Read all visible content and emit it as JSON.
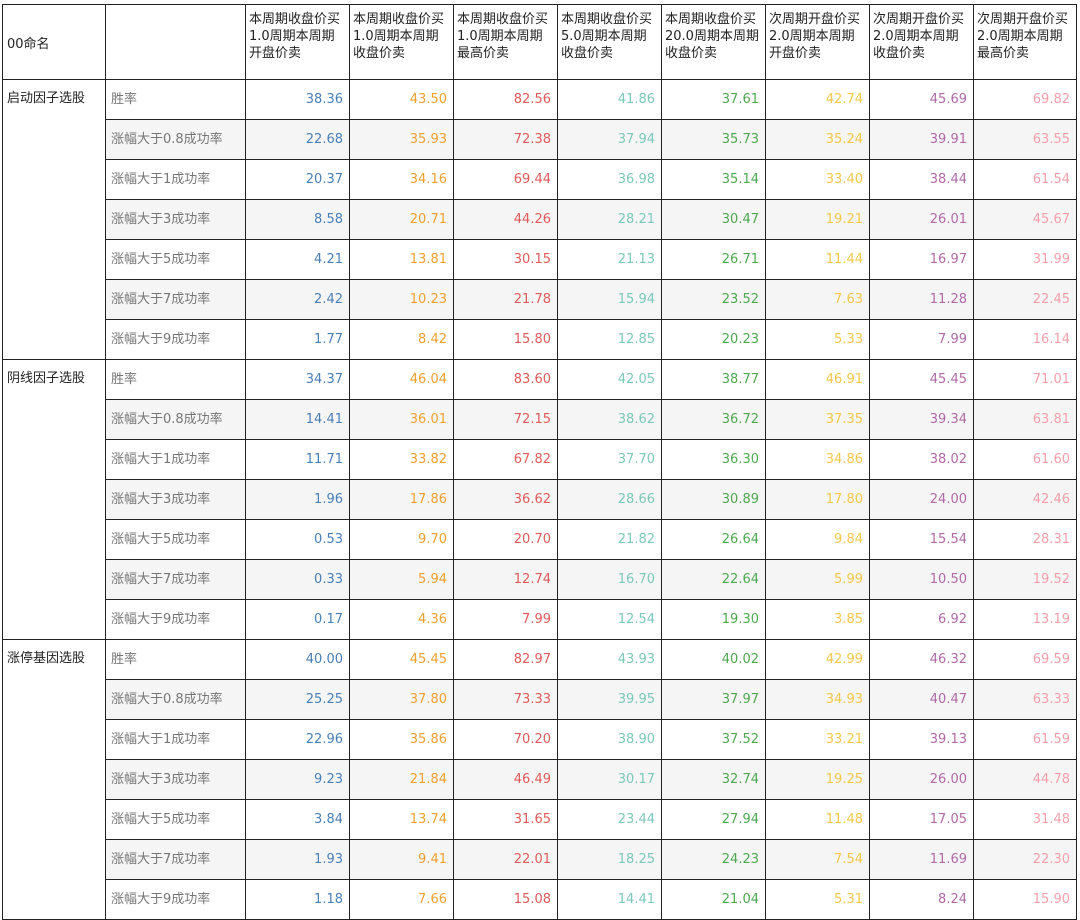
{
  "table": {
    "corner_label": "00命名",
    "columns": [
      "本周期收盘价买1.0周期本周期开盘价卖",
      "本周期收盘价买1.0周期本周期收盘价卖",
      "本周期收盘价买1.0周期本周期最高价卖",
      "本周期收盘价买5.0周期本周期收盘价卖",
      "本周期收盘价买20.0周期本周期收盘价卖",
      "次周期开盘价买2.0周期本周期开盘价卖",
      "次周期开盘价买2.0周期本周期收盘价卖",
      "次周期开盘价买2.0周期本周期最高价卖"
    ],
    "column_colors": [
      "#4a7fb5",
      "#f0a030",
      "#e05a5a",
      "#7cc8b8",
      "#4fa84f",
      "#f2c84b",
      "#b06aa8",
      "#f5a0ac"
    ],
    "metrics": [
      "胜率",
      "涨幅大于0.8成功率",
      "涨幅大于1成功率",
      "涨幅大于3成功率",
      "涨幅大于5成功率",
      "涨幅大于7成功率",
      "涨幅大于9成功率"
    ],
    "groups": [
      {
        "name": "启动因子选股",
        "rows": [
          [
            "38.36",
            "43.50",
            "82.56",
            "41.86",
            "37.61",
            "42.74",
            "45.69",
            "69.82"
          ],
          [
            "22.68",
            "35.93",
            "72.38",
            "37.94",
            "35.73",
            "35.24",
            "39.91",
            "63.55"
          ],
          [
            "20.37",
            "34.16",
            "69.44",
            "36.98",
            "35.14",
            "33.40",
            "38.44",
            "61.54"
          ],
          [
            "8.58",
            "20.71",
            "44.26",
            "28.21",
            "30.47",
            "19.21",
            "26.01",
            "45.67"
          ],
          [
            "4.21",
            "13.81",
            "30.15",
            "21.13",
            "26.71",
            "11.44",
            "16.97",
            "31.99"
          ],
          [
            "2.42",
            "10.23",
            "21.78",
            "15.94",
            "23.52",
            "7.63",
            "11.28",
            "22.45"
          ],
          [
            "1.77",
            "8.42",
            "15.80",
            "12.85",
            "20.23",
            "5.33",
            "7.99",
            "16.14"
          ]
        ]
      },
      {
        "name": "阴线因子选股",
        "rows": [
          [
            "34.37",
            "46.04",
            "83.60",
            "42.05",
            "38.77",
            "46.91",
            "45.45",
            "71.01"
          ],
          [
            "14.41",
            "36.01",
            "72.15",
            "38.62",
            "36.72",
            "37.35",
            "39.34",
            "63.81"
          ],
          [
            "11.71",
            "33.82",
            "67.82",
            "37.70",
            "36.30",
            "34.86",
            "38.02",
            "61.60"
          ],
          [
            "1.96",
            "17.86",
            "36.62",
            "28.66",
            "30.89",
            "17.80",
            "24.00",
            "42.46"
          ],
          [
            "0.53",
            "9.70",
            "20.70",
            "21.82",
            "26.64",
            "9.84",
            "15.54",
            "28.31"
          ],
          [
            "0.33",
            "5.94",
            "12.74",
            "16.70",
            "22.64",
            "5.99",
            "10.50",
            "19.52"
          ],
          [
            "0.17",
            "4.36",
            "7.99",
            "12.54",
            "19.30",
            "3.85",
            "6.92",
            "13.19"
          ]
        ]
      },
      {
        "name": "涨停基因选股",
        "rows": [
          [
            "40.00",
            "45.45",
            "82.97",
            "43.93",
            "40.02",
            "42.99",
            "46.32",
            "69.59"
          ],
          [
            "25.25",
            "37.80",
            "73.33",
            "39.95",
            "37.97",
            "34.93",
            "40.47",
            "63.33"
          ],
          [
            "22.96",
            "35.86",
            "70.20",
            "38.90",
            "37.52",
            "33.21",
            "39.13",
            "61.59"
          ],
          [
            "9.23",
            "21.84",
            "46.49",
            "30.17",
            "32.74",
            "19.25",
            "26.00",
            "44.78"
          ],
          [
            "3.84",
            "13.74",
            "31.65",
            "23.44",
            "27.94",
            "11.48",
            "17.05",
            "31.48"
          ],
          [
            "1.93",
            "9.41",
            "22.01",
            "18.25",
            "24.23",
            "7.54",
            "11.69",
            "22.30"
          ],
          [
            "1.18",
            "7.66",
            "15.08",
            "14.41",
            "21.04",
            "5.31",
            "8.24",
            "15.90"
          ]
        ]
      }
    ]
  }
}
